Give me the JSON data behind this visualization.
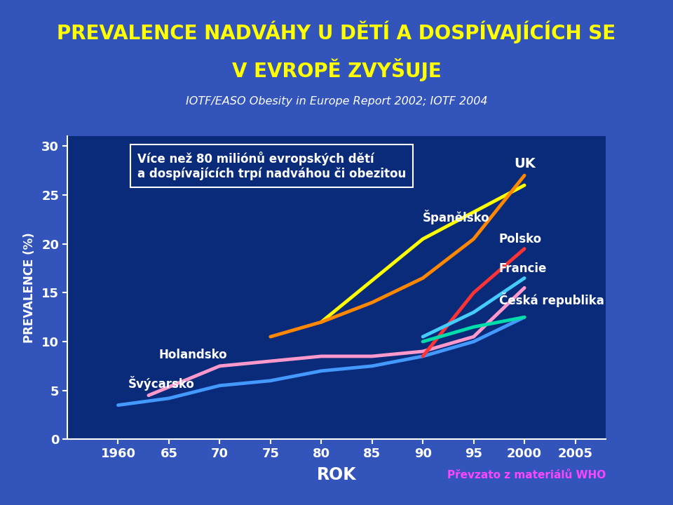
{
  "title_line1": "PREVALENCE NADVÁHY U DĚTÍ A DOSPÍVAJÍCÍCH SE",
  "title_line2": "V EVROPĚ ZVYŠUJE",
  "subtitle": "IOTF/EASO Obesity in Europe Report 2002; IOTF 2004",
  "ylabel": "PREVALENCE (%)",
  "xlabel": "ROK",
  "source_text": "Převzato z materiálů WHO",
  "annotation_text": "Více než 80 miliónů evropských dětí\na dospívajících trpí nadváhou či obezitou",
  "bg_color": "#0a2a7a",
  "outer_bg": "#3355bb",
  "title_bg": "#0a2a7a",
  "title_color": "#ffff00",
  "subtitle_color": "#ffffff",
  "axis_label_color": "#ffffff",
  "tick_color": "#ffffff",
  "source_color": "#ff44ff",
  "annotation_color": "#ffffff",
  "lines": [
    {
      "name": "Švýcarsko",
      "color": "#4499ff",
      "x": [
        1960,
        1965,
        1970,
        1975,
        1980,
        1985,
        1990,
        1995,
        2000
      ],
      "y": [
        3.5,
        4.2,
        5.5,
        6.0,
        7.0,
        7.5,
        8.5,
        10.0,
        12.5
      ]
    },
    {
      "name": "Holandsko",
      "color": "#ff99cc",
      "x": [
        1963,
        1970,
        1975,
        1980,
        1985,
        1990,
        1995,
        2000
      ],
      "y": [
        4.5,
        7.5,
        8.0,
        8.5,
        8.5,
        9.0,
        10.5,
        15.5
      ]
    },
    {
      "name": "Španělsko",
      "color": "#ffff00",
      "x": [
        1980,
        1990,
        2000
      ],
      "y": [
        12.0,
        20.5,
        26.0
      ]
    },
    {
      "name": "UK",
      "color": "#ff8800",
      "x": [
        1975,
        1980,
        1985,
        1990,
        1995,
        2000
      ],
      "y": [
        10.5,
        12.0,
        14.0,
        16.5,
        20.5,
        27.0
      ]
    },
    {
      "name": "Polsko",
      "color": "#ff3333",
      "x": [
        1990,
        1995,
        2000
      ],
      "y": [
        8.5,
        15.0,
        19.5
      ]
    },
    {
      "name": "Francie",
      "color": "#44ccff",
      "x": [
        1990,
        1995,
        2000
      ],
      "y": [
        10.5,
        13.0,
        16.5
      ]
    },
    {
      "name": "Česká republika",
      "color": "#00ddaa",
      "x": [
        1990,
        1995,
        2000
      ],
      "y": [
        10.0,
        11.5,
        12.5
      ]
    }
  ],
  "xticks": [
    1960,
    1965,
    1970,
    1975,
    1980,
    1985,
    1990,
    1995,
    2000,
    2005
  ],
  "xticklabels": [
    "1960",
    "65",
    "70",
    "75",
    "80",
    "85",
    "90",
    "95",
    "2000",
    "2005"
  ],
  "yticks": [
    0,
    5,
    10,
    15,
    20,
    25,
    30
  ],
  "xlim": [
    1955,
    2008
  ],
  "ylim": [
    0,
    31
  ]
}
